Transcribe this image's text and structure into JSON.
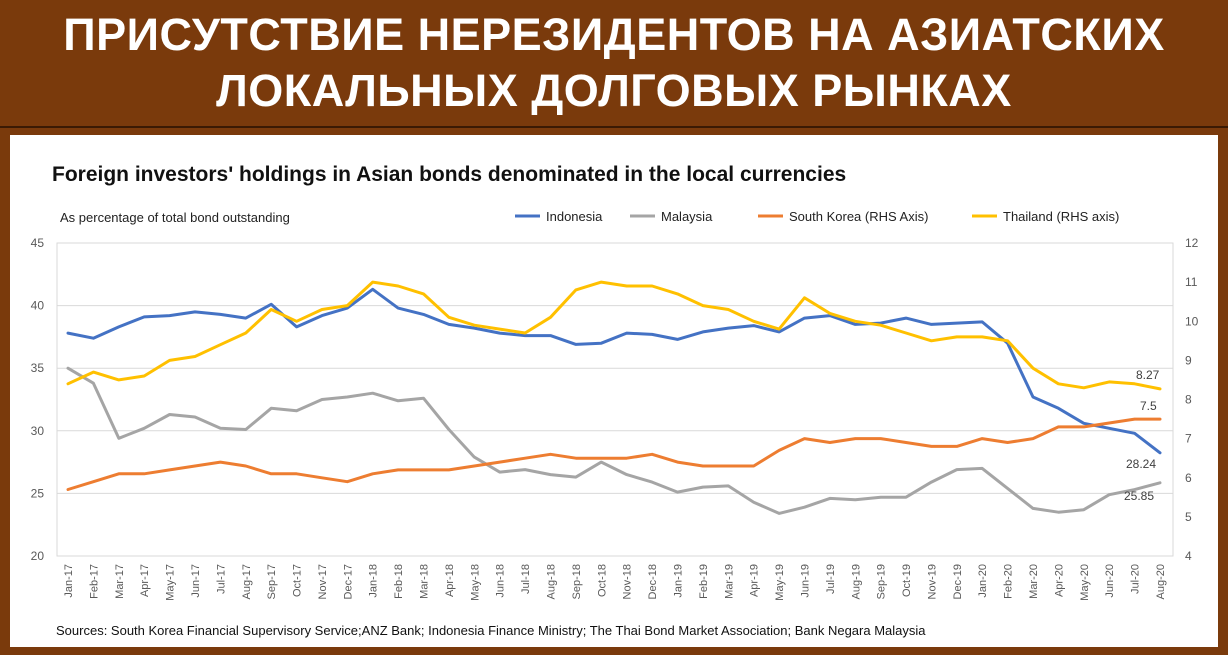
{
  "header": {
    "line1": "ПРИСУТСТВИЕ НЕРЕЗИДЕНТОВ НА АЗИАТСКИХ",
    "line2": "ЛОКАЛЬНЫХ ДОЛГОВЫХ РЫНКАХ"
  },
  "colors": {
    "background": "#7a3a0c",
    "indonesia": "#4472c4",
    "malaysia": "#a5a5a5",
    "south_korea": "#ed7d31",
    "thailand": "#ffc000"
  },
  "chart_data": {
    "type": "line",
    "title": "Foreign investors' holdings in Asian bonds denominated in the local currencies",
    "subtitle": "As percentage of total bond outstanding",
    "source": "Sources: South Korea Financial Supervisory Service;ANZ Bank; Indonesia Finance Ministry; The Thai Bond Market Association; Bank Negara Malaysia",
    "legend_position": "top-right",
    "grid": "horizontal",
    "left_axis": {
      "range": [
        20,
        45
      ],
      "ticks": [
        "20",
        "25",
        "30",
        "35",
        "40",
        "45"
      ]
    },
    "right_axis": {
      "range": [
        4,
        12
      ],
      "ticks": [
        "4",
        "5",
        "6",
        "7",
        "8",
        "9",
        "10",
        "11",
        "12"
      ]
    },
    "categories": [
      "Jan-17",
      "Feb-17",
      "Mar-17",
      "Apr-17",
      "May-17",
      "Jun-17",
      "Jul-17",
      "Aug-17",
      "Sep-17",
      "Oct-17",
      "Nov-17",
      "Dec-17",
      "Jan-18",
      "Feb-18",
      "Mar-18",
      "Apr-18",
      "May-18",
      "Jun-18",
      "Jul-18",
      "Aug-18",
      "Sep-18",
      "Oct-18",
      "Nov-18",
      "Dec-18",
      "Jan-19",
      "Feb-19",
      "Mar-19",
      "Apr-19",
      "May-19",
      "Jun-19",
      "Jul-19",
      "Aug-19",
      "Sep-19",
      "Oct-19",
      "Nov-19",
      "Dec-19",
      "Jan-20",
      "Feb-20",
      "Mar-20",
      "Apr-20",
      "May-20",
      "Jun-20",
      "Jul-20",
      "Aug-20"
    ],
    "series": [
      {
        "name": "Indonesia",
        "axis": "left",
        "color": "#4472c4",
        "end_label": "28.24",
        "values": [
          37.8,
          37.4,
          38.3,
          39.1,
          39.2,
          39.5,
          39.3,
          39.0,
          40.1,
          38.3,
          39.2,
          39.8,
          41.3,
          39.8,
          39.3,
          38.5,
          38.2,
          37.8,
          37.6,
          37.6,
          36.9,
          37.0,
          37.8,
          37.7,
          37.3,
          37.9,
          38.2,
          38.4,
          37.9,
          39.0,
          39.2,
          38.5,
          38.6,
          39.0,
          38.5,
          38.6,
          38.7,
          37.0,
          32.7,
          31.8,
          30.6,
          30.2,
          29.8,
          28.24
        ]
      },
      {
        "name": "Malaysia",
        "axis": "left",
        "color": "#a5a5a5",
        "end_label": "25.85",
        "values": [
          35.0,
          33.8,
          29.4,
          30.2,
          31.3,
          31.1,
          30.2,
          30.1,
          31.8,
          31.6,
          32.5,
          32.7,
          33.0,
          32.4,
          32.6,
          30.1,
          27.9,
          26.7,
          26.9,
          26.5,
          26.3,
          27.5,
          26.5,
          25.9,
          25.1,
          25.5,
          25.6,
          24.3,
          23.4,
          23.9,
          24.6,
          24.5,
          24.7,
          24.7,
          25.9,
          26.9,
          27.0,
          25.4,
          23.8,
          23.5,
          23.7,
          24.9,
          25.3,
          25.85
        ]
      },
      {
        "name": "South Korea (RHS Axis)",
        "axis": "right",
        "color": "#ed7d31",
        "end_label": "7.5",
        "values": [
          5.7,
          5.9,
          6.1,
          6.1,
          6.2,
          6.3,
          6.4,
          6.3,
          6.1,
          6.1,
          6.0,
          5.9,
          6.1,
          6.2,
          6.2,
          6.2,
          6.3,
          6.4,
          6.5,
          6.6,
          6.5,
          6.5,
          6.5,
          6.6,
          6.4,
          6.3,
          6.3,
          6.3,
          6.7,
          7.0,
          6.9,
          7.0,
          7.0,
          6.9,
          6.8,
          6.8,
          7.0,
          6.9,
          7.0,
          7.3,
          7.3,
          7.4,
          7.5,
          7.5
        ]
      },
      {
        "name": "Thailand (RHS axis)",
        "axis": "right",
        "color": "#ffc000",
        "end_label": "8.27",
        "values": [
          8.4,
          8.7,
          8.5,
          8.6,
          9.0,
          9.1,
          9.4,
          9.7,
          10.3,
          10.0,
          10.3,
          10.4,
          11.0,
          10.9,
          10.7,
          10.1,
          9.9,
          9.8,
          9.7,
          10.1,
          10.8,
          11.0,
          10.9,
          10.9,
          10.7,
          10.4,
          10.3,
          10.0,
          9.8,
          10.6,
          10.2,
          10.0,
          9.9,
          9.7,
          9.5,
          9.6,
          9.6,
          9.5,
          8.8,
          8.4,
          8.3,
          8.45,
          8.4,
          8.27
        ]
      }
    ]
  }
}
